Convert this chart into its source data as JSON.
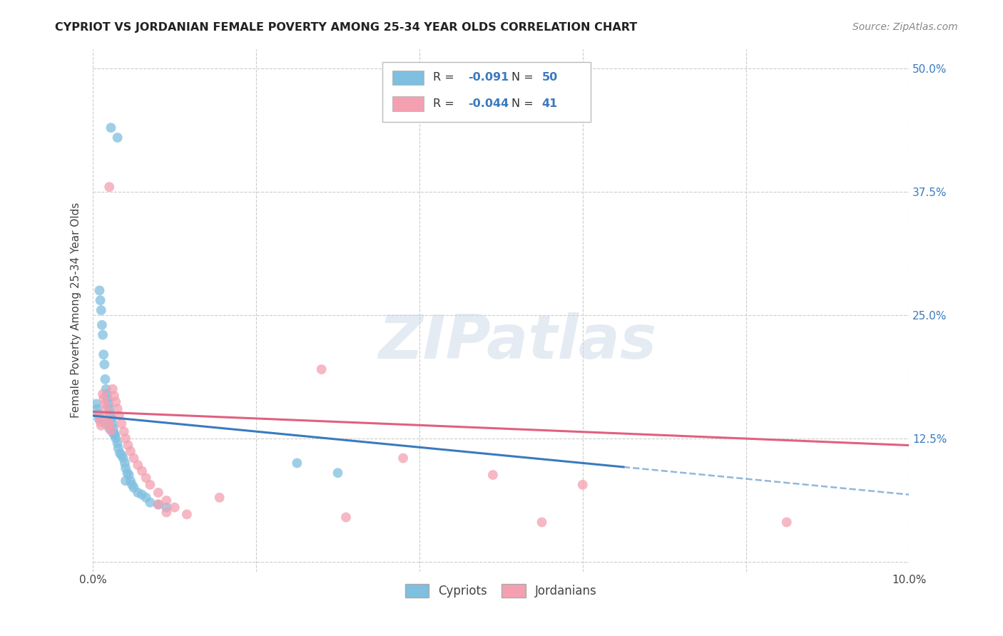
{
  "title": "CYPRIOT VS JORDANIAN FEMALE POVERTY AMONG 25-34 YEAR OLDS CORRELATION CHART",
  "source": "Source: ZipAtlas.com",
  "ylabel": "Female Poverty Among 25-34 Year Olds",
  "xlim": [
    0.0,
    0.1
  ],
  "ylim": [
    -0.01,
    0.52
  ],
  "yticks": [
    0.0,
    0.125,
    0.25,
    0.375,
    0.5
  ],
  "yticklabels": [
    "",
    "12.5%",
    "25.0%",
    "37.5%",
    "50.0%"
  ],
  "background_color": "#ffffff",
  "grid_color": "#cccccc",
  "watermark_text": "ZIPatlas",
  "legend_R_blue": "-0.091",
  "legend_N_blue": "50",
  "legend_R_pink": "-0.044",
  "legend_N_pink": "41",
  "blue_color": "#7fbfdf",
  "pink_color": "#f4a0b0",
  "trendline_blue_color": "#3a7abf",
  "trendline_pink_color": "#e06080",
  "cypriot_x": [
    0.0022,
    0.003,
    0.0008,
    0.0009,
    0.001,
    0.0011,
    0.0012,
    0.0013,
    0.0014,
    0.0015,
    0.0016,
    0.0017,
    0.0018,
    0.0019,
    0.002,
    0.0021,
    0.0023,
    0.0024,
    0.0025,
    0.0026,
    0.0027,
    0.0028,
    0.003,
    0.0031,
    0.0033,
    0.0035,
    0.0037,
    0.0039,
    0.004,
    0.0042,
    0.0044,
    0.0046,
    0.0048,
    0.005,
    0.0055,
    0.006,
    0.0065,
    0.007,
    0.008,
    0.009,
    0.0004,
    0.0005,
    0.0006,
    0.0007,
    0.0015,
    0.002,
    0.0025,
    0.025,
    0.03,
    0.004
  ],
  "cypriot_y": [
    0.44,
    0.43,
    0.275,
    0.265,
    0.255,
    0.24,
    0.23,
    0.21,
    0.2,
    0.185,
    0.175,
    0.17,
    0.165,
    0.16,
    0.155,
    0.15,
    0.145,
    0.14,
    0.135,
    0.13,
    0.128,
    0.125,
    0.12,
    0.115,
    0.11,
    0.108,
    0.105,
    0.1,
    0.095,
    0.09,
    0.088,
    0.082,
    0.078,
    0.075,
    0.07,
    0.068,
    0.065,
    0.06,
    0.058,
    0.055,
    0.16,
    0.155,
    0.15,
    0.145,
    0.14,
    0.135,
    0.13,
    0.1,
    0.09,
    0.082
  ],
  "jordanian_x": [
    0.0008,
    0.0009,
    0.001,
    0.0012,
    0.0013,
    0.0015,
    0.0016,
    0.0018,
    0.0019,
    0.002,
    0.0022,
    0.0024,
    0.0026,
    0.0028,
    0.003,
    0.0032,
    0.0035,
    0.0038,
    0.004,
    0.0043,
    0.0046,
    0.005,
    0.0055,
    0.006,
    0.0065,
    0.007,
    0.008,
    0.009,
    0.01,
    0.0115,
    0.002,
    0.028,
    0.038,
    0.049,
    0.06,
    0.0155,
    0.008,
    0.009,
    0.031,
    0.055,
    0.085
  ],
  "jordanian_y": [
    0.148,
    0.142,
    0.138,
    0.17,
    0.165,
    0.16,
    0.155,
    0.148,
    0.142,
    0.138,
    0.133,
    0.175,
    0.168,
    0.162,
    0.155,
    0.148,
    0.14,
    0.132,
    0.125,
    0.118,
    0.112,
    0.105,
    0.098,
    0.092,
    0.085,
    0.078,
    0.07,
    0.062,
    0.055,
    0.048,
    0.38,
    0.195,
    0.105,
    0.088,
    0.078,
    0.065,
    0.058,
    0.05,
    0.045,
    0.04,
    0.04
  ],
  "trend_blue_x0": 0.0,
  "trend_blue_y0": 0.148,
  "trend_blue_x1": 0.065,
  "trend_blue_y1": 0.096,
  "trend_blue_dash_x0": 0.065,
  "trend_blue_dash_y0": 0.096,
  "trend_blue_dash_x1": 0.1,
  "trend_blue_dash_y1": 0.068,
  "trend_pink_x0": 0.0,
  "trend_pink_y0": 0.152,
  "trend_pink_x1": 0.1,
  "trend_pink_y1": 0.118
}
